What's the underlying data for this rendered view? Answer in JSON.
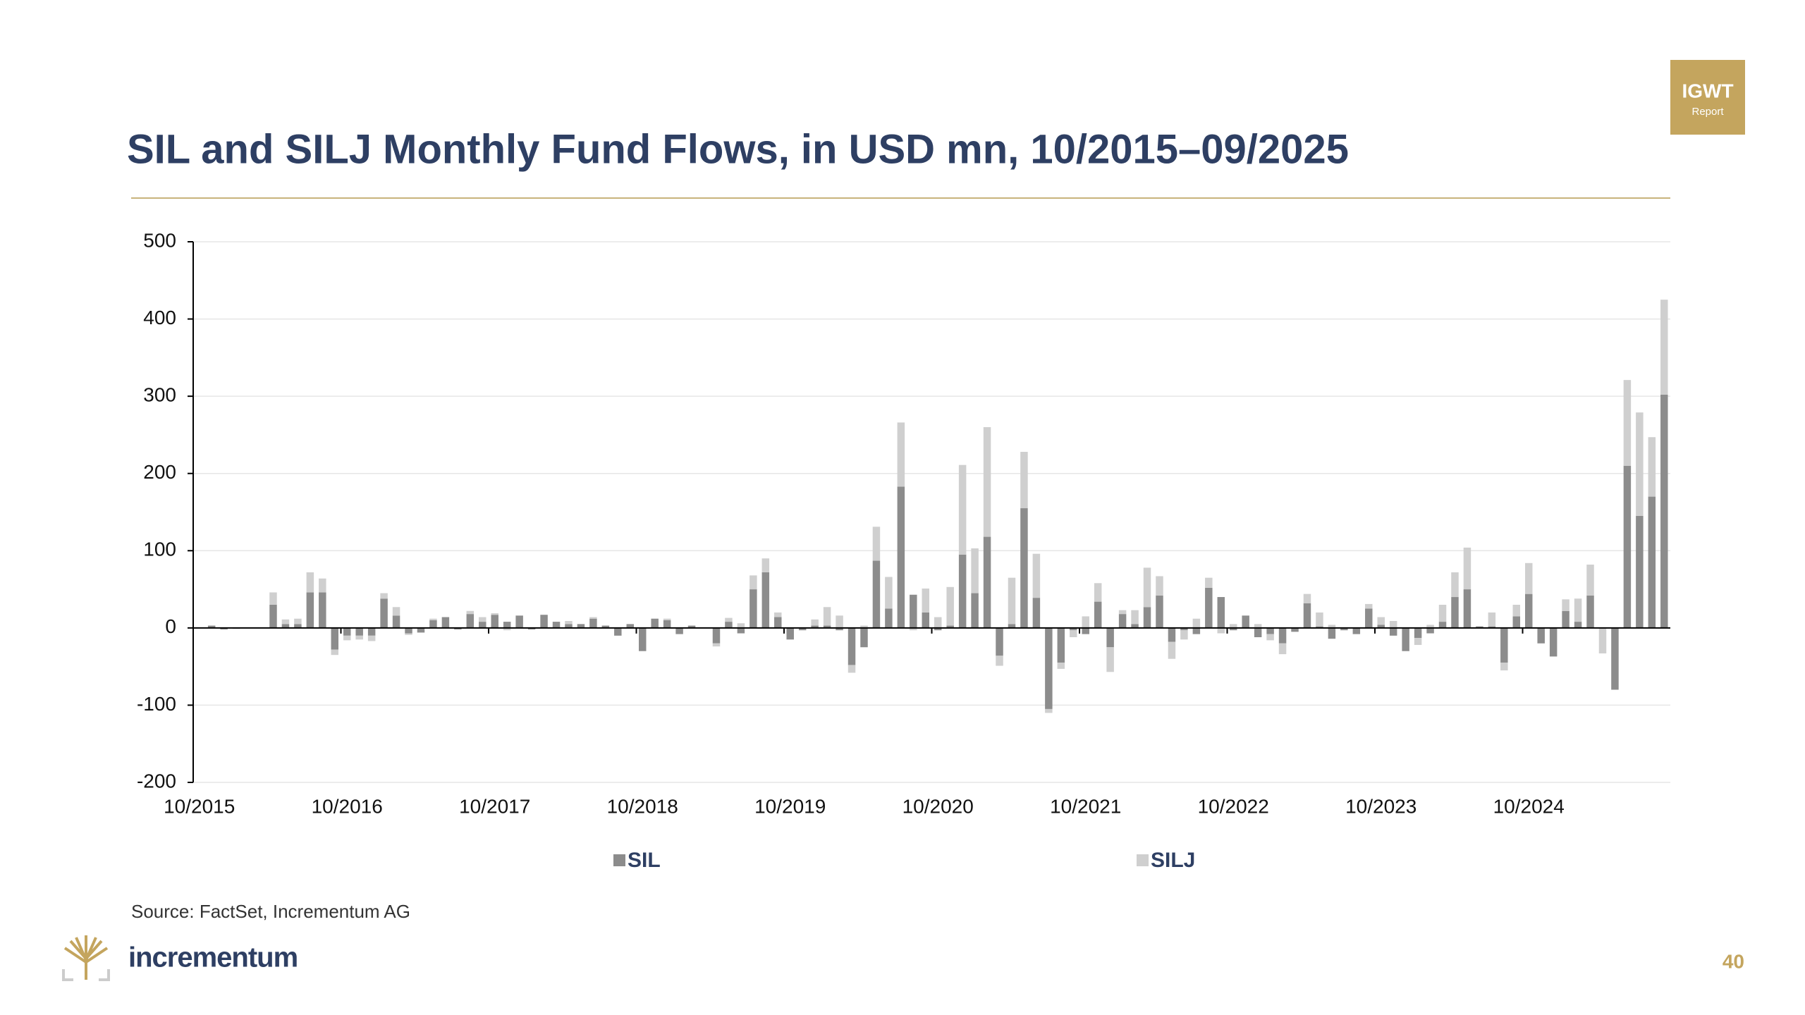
{
  "chart_data": {
    "type": "stacked_bar",
    "title": "SIL and SILJ Monthly Fund Flows, in USD mn, 10/2015–09/2025",
    "source": "Source: FactSet, Incrementum AG",
    "categories": [
      "10/2015",
      null,
      null,
      null,
      null,
      null,
      null,
      null,
      null,
      null,
      null,
      null,
      "10/2016",
      null,
      null,
      null,
      null,
      null,
      null,
      null,
      null,
      null,
      null,
      null,
      "10/2017",
      null,
      null,
      null,
      null,
      null,
      null,
      null,
      null,
      null,
      null,
      null,
      "10/2018",
      null,
      null,
      null,
      null,
      null,
      null,
      null,
      null,
      null,
      null,
      null,
      "10/2019",
      null,
      null,
      null,
      null,
      null,
      null,
      null,
      null,
      null,
      null,
      null,
      "10/2020",
      null,
      null,
      null,
      null,
      null,
      null,
      null,
      null,
      null,
      null,
      null,
      "10/2021",
      null,
      null,
      null,
      null,
      null,
      null,
      null,
      null,
      null,
      null,
      null,
      "10/2022",
      null,
      null,
      null,
      null,
      null,
      null,
      null,
      null,
      null,
      null,
      null,
      "10/2023",
      null,
      null,
      null,
      null,
      null,
      null,
      null,
      null,
      null,
      null,
      null,
      "10/2024",
      null,
      null,
      null,
      null,
      null,
      null,
      null,
      null,
      null,
      null,
      null
    ],
    "series": [
      {
        "name": "SIL",
        "color": "#8c8c8c",
        "values": [
          0,
          3,
          -2,
          -1,
          0,
          0,
          30,
          5,
          5,
          46,
          46,
          -28,
          -10,
          -10,
          -10,
          38,
          16,
          -7,
          -6,
          10,
          14,
          -2,
          18,
          8,
          17,
          8,
          16,
          -2,
          17,
          8,
          5,
          5,
          12,
          3,
          -10,
          5,
          -30,
          12,
          10,
          -8,
          3,
          0,
          -20,
          8,
          -7,
          50,
          72,
          14,
          -15,
          -3,
          3,
          3,
          -3,
          -48,
          -25,
          87,
          25,
          183,
          43,
          20,
          -3,
          3,
          95,
          45,
          118,
          -36,
          5,
          155,
          39,
          -105,
          -45,
          -3,
          -8,
          34,
          -25,
          18,
          5,
          27,
          42,
          -18,
          -3,
          -8,
          52,
          40,
          -3,
          16,
          -12,
          -8,
          -20,
          -5,
          32,
          2,
          -14,
          -3,
          -8,
          25,
          4,
          -10,
          -30,
          -13,
          -7,
          8,
          40,
          50,
          2,
          2,
          -45,
          15,
          44,
          -20,
          -37,
          22,
          8,
          42,
          0,
          -80,
          210,
          145,
          170,
          302
        ]
      },
      {
        "name": "SILJ",
        "color": "#cfcfcf",
        "values": [
          0,
          0,
          0,
          0,
          0,
          0,
          16,
          6,
          7,
          26,
          18,
          -7,
          -6,
          -5,
          -7,
          7,
          11,
          -2,
          0,
          2,
          0,
          0,
          4,
          6,
          2,
          -3,
          0,
          0,
          0,
          0,
          4,
          0,
          2,
          0,
          0,
          0,
          0,
          0,
          2,
          0,
          0,
          0,
          -4,
          5,
          6,
          18,
          18,
          6,
          0,
          0,
          8,
          24,
          16,
          -10,
          3,
          44,
          41,
          83,
          -3,
          31,
          14,
          50,
          116,
          58,
          142,
          -13,
          60,
          73,
          57,
          -5,
          -8,
          -9,
          15,
          24,
          -32,
          5,
          18,
          51,
          25,
          -22,
          -12,
          12,
          13,
          -7,
          5,
          0,
          5,
          -8,
          -14,
          0,
          12,
          18,
          4,
          0,
          0,
          6,
          10,
          9,
          0,
          -9,
          4,
          22,
          32,
          54,
          0,
          18,
          -10,
          15,
          40,
          0,
          0,
          15,
          30,
          40,
          -33,
          0,
          111,
          134,
          77,
          123
        ]
      }
    ],
    "ylim": [
      -200,
      500
    ],
    "yticks": [
      500,
      400,
      300,
      200,
      100,
      0,
      -100,
      -200
    ],
    "grid": true,
    "legend": "bottom"
  },
  "brand": {
    "badge": "IGWT",
    "badge_sub": "Report",
    "logo": "incrementum"
  },
  "page_number": 40
}
